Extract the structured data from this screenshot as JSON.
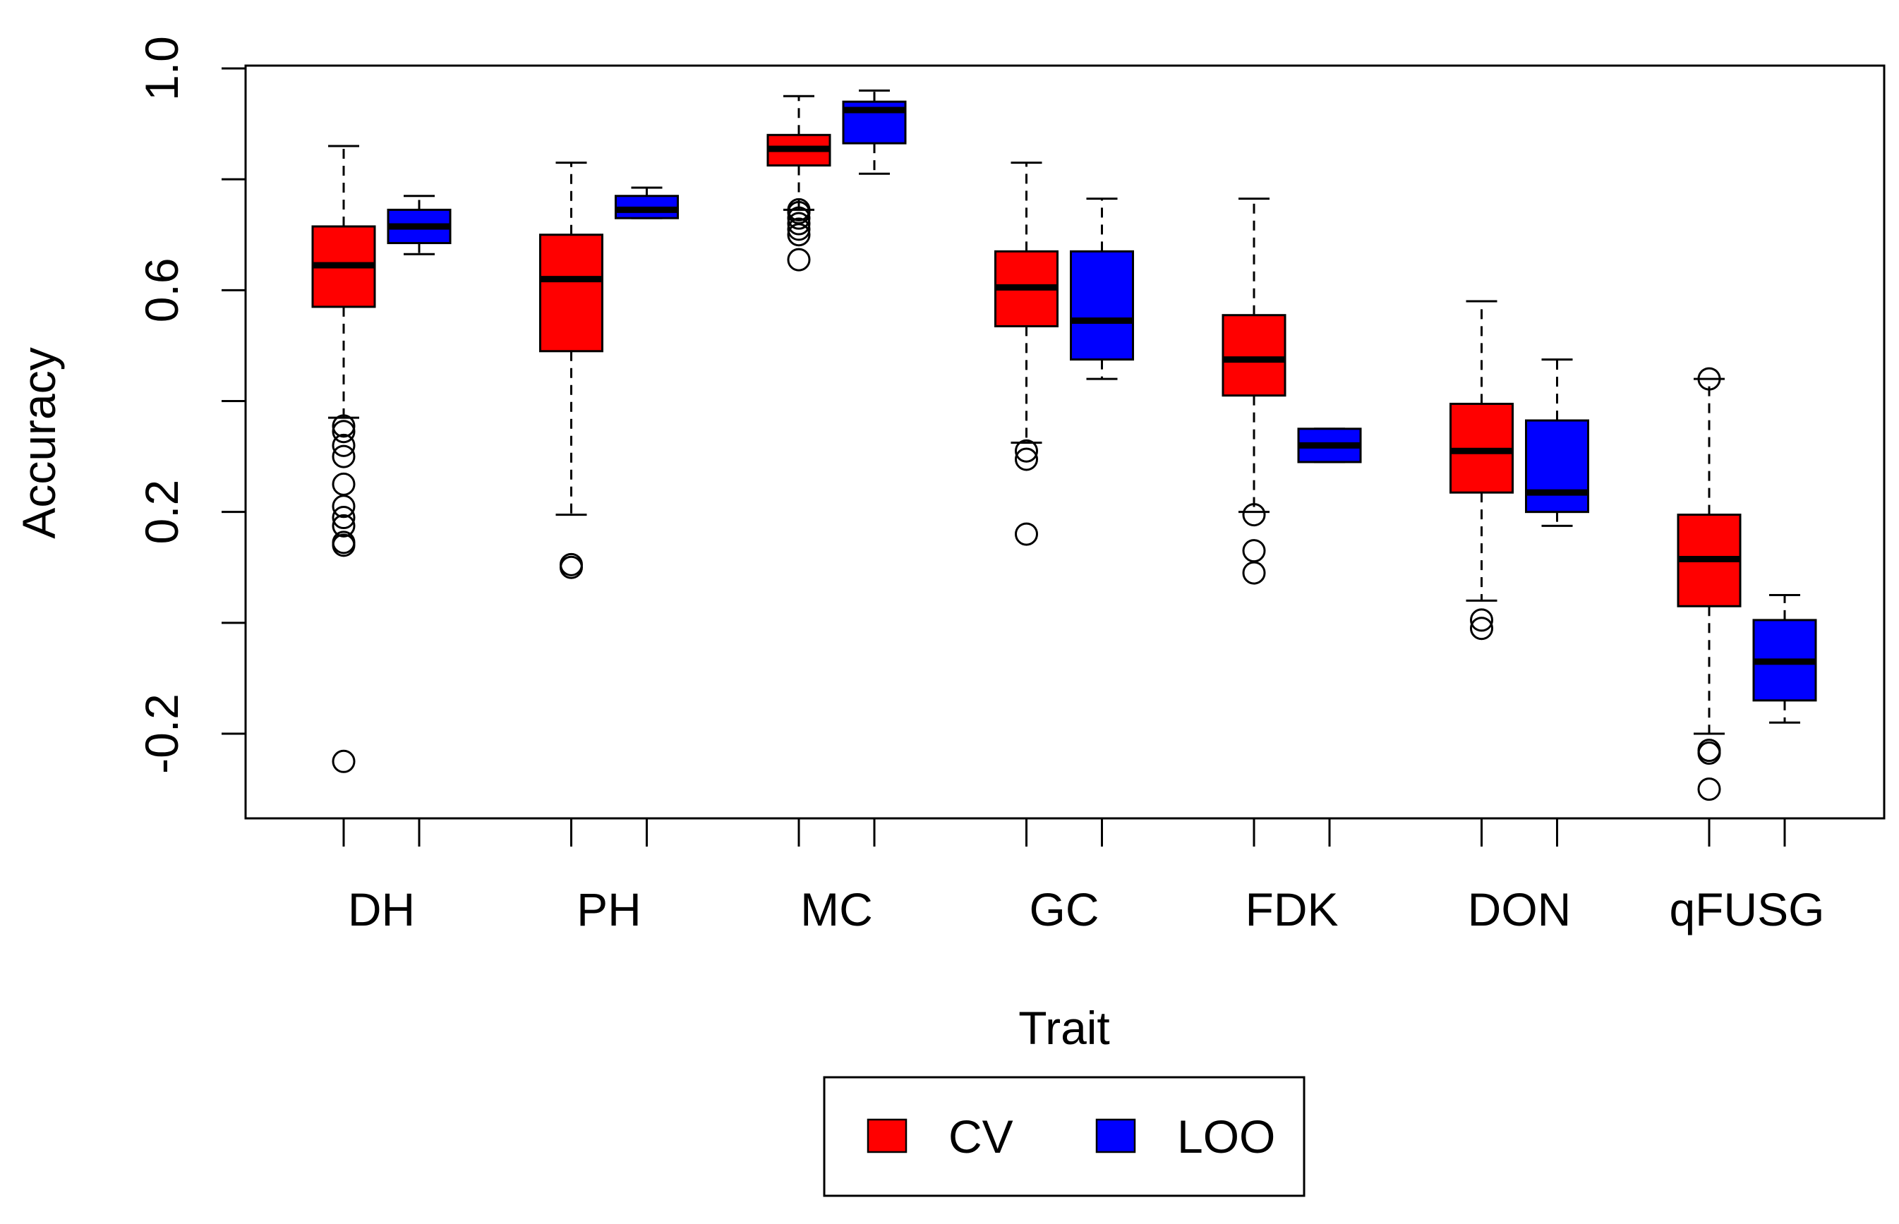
{
  "chart_data": {
    "type": "boxplot",
    "title": "",
    "xlabel": "Trait",
    "ylabel": "Accuracy",
    "ylim": [
      -0.35,
      1.0
    ],
    "yticks": [
      -0.2,
      0.0,
      0.2,
      0.4,
      0.6,
      0.8,
      1.0
    ],
    "ytick_labels": [
      "-0.2",
      "",
      "0.2",
      "",
      "0.6",
      "",
      "1.0"
    ],
    "categories": [
      "DH",
      "PH",
      "MC",
      "GC",
      "FDK",
      "DON",
      "qFUSG"
    ],
    "grid": false,
    "legend_position": "bottom-center",
    "series": [
      {
        "name": "CV",
        "color": "#ff0000",
        "boxes": [
          {
            "whisker_low": 0.37,
            "q1": 0.57,
            "median": 0.645,
            "q3": 0.715,
            "whisker_high": 0.86,
            "outliers": [
              0.355,
              0.345,
              0.32,
              0.3,
              0.25,
              0.21,
              0.19,
              0.175,
              0.145,
              0.14,
              -0.25
            ]
          },
          {
            "whisker_low": 0.195,
            "q1": 0.49,
            "median": 0.62,
            "q3": 0.7,
            "whisker_high": 0.83,
            "outliers": [
              0.105,
              0.1
            ]
          },
          {
            "whisker_low": 0.745,
            "q1": 0.825,
            "median": 0.855,
            "q3": 0.88,
            "whisker_high": 0.95,
            "outliers": [
              0.745,
              0.74,
              0.73,
              0.72,
              0.71,
              0.7,
              0.655
            ]
          },
          {
            "whisker_low": 0.325,
            "q1": 0.535,
            "median": 0.605,
            "q3": 0.67,
            "whisker_high": 0.83,
            "outliers": [
              0.31,
              0.295,
              0.16
            ]
          },
          {
            "whisker_low": 0.2,
            "q1": 0.41,
            "median": 0.475,
            "q3": 0.555,
            "whisker_high": 0.765,
            "outliers": [
              0.195,
              0.13,
              0.09
            ]
          },
          {
            "whisker_low": 0.04,
            "q1": 0.235,
            "median": 0.31,
            "q3": 0.395,
            "whisker_high": 0.58,
            "outliers": [
              0.005,
              -0.01
            ]
          },
          {
            "whisker_low": -0.2,
            "q1": 0.03,
            "median": 0.115,
            "q3": 0.195,
            "whisker_high": 0.44,
            "outliers": [
              0.44,
              -0.23,
              -0.235,
              -0.3
            ]
          }
        ]
      },
      {
        "name": "LOO",
        "color": "#0000ff",
        "boxes": [
          {
            "whisker_low": 0.665,
            "q1": 0.685,
            "median": 0.715,
            "q3": 0.745,
            "whisker_high": 0.77,
            "outliers": []
          },
          {
            "whisker_low": 0.73,
            "q1": 0.73,
            "median": 0.745,
            "q3": 0.77,
            "whisker_high": 0.785,
            "outliers": []
          },
          {
            "whisker_low": 0.81,
            "q1": 0.865,
            "median": 0.925,
            "q3": 0.94,
            "whisker_high": 0.96,
            "outliers": []
          },
          {
            "whisker_low": 0.44,
            "q1": 0.475,
            "median": 0.545,
            "q3": 0.67,
            "whisker_high": 0.765,
            "outliers": []
          },
          {
            "whisker_low": 0.29,
            "q1": 0.29,
            "median": 0.32,
            "q3": 0.35,
            "whisker_high": 0.35,
            "outliers": []
          },
          {
            "whisker_low": 0.175,
            "q1": 0.2,
            "median": 0.235,
            "q3": 0.365,
            "whisker_high": 0.475,
            "outliers": []
          },
          {
            "whisker_low": -0.18,
            "q1": -0.14,
            "median": -0.07,
            "q3": 0.005,
            "whisker_high": 0.05,
            "outliers": []
          }
        ]
      }
    ]
  }
}
